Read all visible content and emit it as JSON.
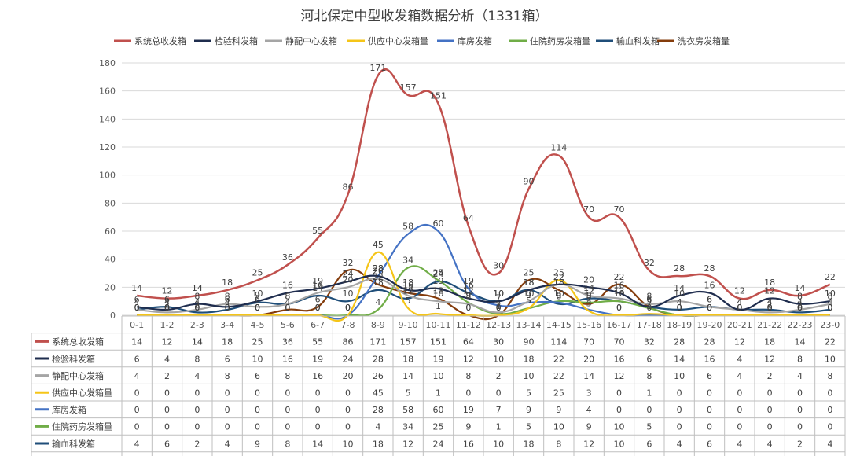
{
  "chart_data": {
    "type": "line",
    "title": "河北保定中型收发箱数据分析（1331箱）",
    "legend_position": "top",
    "grid": true,
    "ylim": [
      0,
      180
    ],
    "yticks": [
      0,
      20,
      40,
      60,
      80,
      100,
      120,
      140,
      160,
      180
    ],
    "categories": [
      "0-1",
      "1-2",
      "2-3",
      "3-4",
      "4-5",
      "5-6",
      "6-7",
      "7-8",
      "8-9",
      "9-10",
      "10-11",
      "11-12",
      "12-13",
      "13-14",
      "14-15",
      "15-16",
      "16-17",
      "17-18",
      "18-19",
      "19-20",
      "20-21",
      "21-22",
      "22-23",
      "23-0"
    ],
    "series": [
      {
        "name": "系统总收发箱",
        "color": "#c0504d",
        "values": [
          14,
          12,
          14,
          18,
          25,
          36,
          55,
          86,
          171,
          157,
          151,
          64,
          30,
          90,
          114,
          70,
          70,
          32,
          28,
          28,
          12,
          18,
          14,
          22
        ]
      },
      {
        "name": "检验科发箱",
        "color": "#1f2d4e",
        "values": [
          6,
          4,
          8,
          6,
          10,
          16,
          19,
          24,
          28,
          18,
          19,
          12,
          10,
          18,
          22,
          20,
          16,
          6,
          14,
          16,
          4,
          12,
          8,
          10
        ]
      },
      {
        "name": "静配中心发箱",
        "color": "#a5a5a5",
        "values": [
          4,
          2,
          4,
          8,
          6,
          8,
          16,
          20,
          26,
          14,
          10,
          8,
          2,
          10,
          22,
          14,
          12,
          8,
          10,
          6,
          4,
          2,
          4,
          8
        ]
      },
      {
        "name": "供应中心发箱量",
        "color": "#f5c518",
        "values": [
          0,
          0,
          0,
          0,
          0,
          0,
          0,
          0,
          45,
          5,
          1,
          0,
          0,
          5,
          25,
          3,
          0,
          1,
          0,
          0,
          0,
          0,
          0,
          0
        ]
      },
      {
        "name": "库房发箱",
        "color": "#4472c4",
        "values": [
          0,
          0,
          0,
          0,
          0,
          0,
          0,
          0,
          28,
          58,
          60,
          19,
          7,
          9,
          9,
          4,
          0,
          0,
          0,
          0,
          0,
          0,
          0,
          0
        ]
      },
      {
        "name": "住院药房发箱量",
        "color": "#70ad47",
        "values": [
          0,
          0,
          0,
          0,
          0,
          0,
          0,
          0,
          4,
          34,
          25,
          9,
          1,
          5,
          10,
          9,
          10,
          5,
          0,
          0,
          0,
          0,
          0,
          0
        ]
      },
      {
        "name": "输血科发箱",
        "color": "#1f4e79",
        "values": [
          4,
          6,
          2,
          4,
          9,
          8,
          14,
          10,
          18,
          12,
          24,
          16,
          10,
          18,
          8,
          12,
          10,
          6,
          4,
          6,
          4,
          4,
          2,
          4
        ]
      },
      {
        "name": "洗衣房发箱量",
        "color": "#843c0c",
        "values": [
          0,
          0,
          0,
          0,
          0,
          4,
          6,
          32,
          22,
          16,
          12,
          0,
          0,
          25,
          18,
          8,
          22,
          6,
          0,
          0,
          0,
          0,
          0,
          0
        ]
      }
    ]
  }
}
